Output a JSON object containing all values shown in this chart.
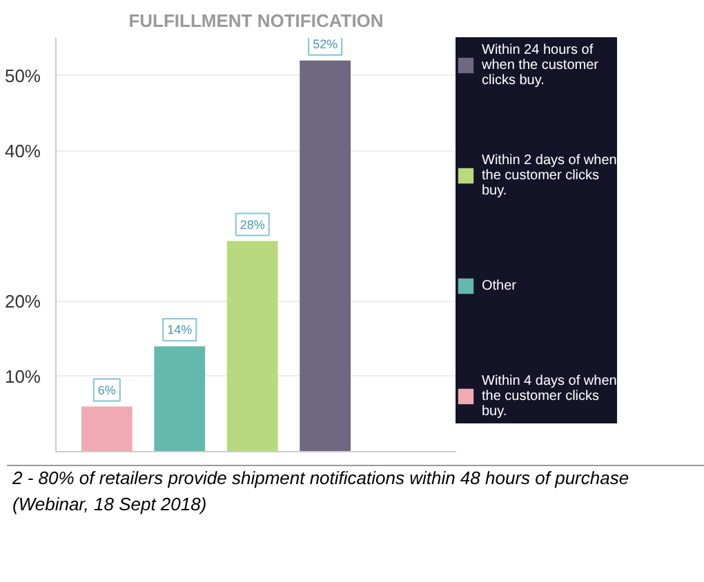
{
  "chart_data": {
    "type": "bar",
    "title": "FULFILLMENT NOTIFICATION",
    "categories": [
      null,
      null,
      null,
      null
    ],
    "stacked": true,
    "series": [
      {
        "name": "Within 24 hours of when the customer clicks buy.",
        "color": "#6e6880",
        "values": [
          null,
          null,
          null,
          52
        ],
        "value_labels": [
          null,
          null,
          null,
          "52%"
        ]
      },
      {
        "name": "Within 2 days of when the customer clicks buy.",
        "color": "#b9d97f",
        "values": [
          null,
          null,
          28,
          null
        ],
        "value_labels": [
          null,
          null,
          "28%",
          null
        ]
      },
      {
        "name": "Other",
        "color": "#64b8ac",
        "values": [
          null,
          14,
          null,
          null
        ],
        "value_labels": [
          null,
          "14%",
          null,
          null
        ]
      },
      {
        "name": "Within 4 days of when the customer clicks buy.",
        "color": "#f0aab3",
        "values": [
          6,
          null,
          null,
          null
        ],
        "value_labels": [
          "6%",
          null,
          null,
          null
        ]
      }
    ],
    "ylim": [
      0,
      55
    ],
    "yticks": [
      {
        "value": 10,
        "label": "10%"
      },
      {
        "value": 20,
        "label": "20%"
      },
      {
        "value": 40,
        "label": "40%"
      },
      {
        "value": 50,
        "label": "50%"
      }
    ],
    "grid": "y",
    "legend": "right",
    "annotations": [
      "2 - 80% of retailers provide shipment notifications within 48 hours of purchase (Webinar, 18 Sept 2018)"
    ]
  }
}
